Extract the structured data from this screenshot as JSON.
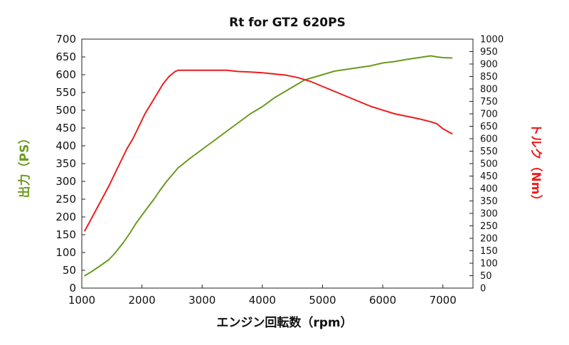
{
  "colors": {
    "power": "#6a9a1f",
    "torque": "#ee1c1c",
    "axis": "#222222",
    "text": "#111111"
  },
  "chart_data": {
    "type": "line",
    "title": "Rt for GT2 620PS",
    "xlabel": "エンジン回転数（rpm）",
    "ylabel_left": "出力（PS）",
    "ylabel_right": "トルク（Nm）",
    "xlim": [
      1000,
      7500
    ],
    "ylim_left": [
      0,
      700
    ],
    "ylim_right": [
      0,
      1000
    ],
    "x_ticks": [
      "1000",
      "2000",
      "3000",
      "4000",
      "5000",
      "6000",
      "7000"
    ],
    "x_tick_values": [
      1000,
      2000,
      3000,
      4000,
      5000,
      6000,
      7000
    ],
    "y_left_ticks": [
      "0",
      "50",
      "100",
      "150",
      "200",
      "250",
      "300",
      "350",
      "400",
      "450",
      "500",
      "550",
      "600",
      "650",
      "700"
    ],
    "y_left_tick_values": [
      0,
      50,
      100,
      150,
      200,
      250,
      300,
      350,
      400,
      450,
      500,
      550,
      600,
      650,
      700
    ],
    "y_right_ticks": [
      "0",
      "50",
      "100",
      "150",
      "200",
      "250",
      "300",
      "350",
      "400",
      "450",
      "500",
      "550",
      "600",
      "650",
      "700",
      "750",
      "800",
      "850",
      "900",
      "950",
      "1000"
    ],
    "y_right_tick_values": [
      0,
      50,
      100,
      150,
      200,
      250,
      300,
      350,
      400,
      450,
      500,
      550,
      600,
      650,
      700,
      750,
      800,
      850,
      900,
      950,
      1000
    ],
    "grid": false,
    "legend": "none",
    "series": [
      {
        "axis": "left",
        "color": "#6a9a1f",
        "x": [
          1050,
          1150,
          1300,
          1450,
          1550,
          1700,
          1800,
          1900,
          2000,
          2100,
          2200,
          2300,
          2400,
          2500,
          2600,
          2800,
          3000,
          3200,
          3400,
          3600,
          3800,
          4000,
          4200,
          4400,
          4600,
          4700,
          4800,
          5000,
          5200,
          5400,
          5600,
          5800,
          6000,
          6200,
          6400,
          6600,
          6800,
          6900,
          7000,
          7150
        ],
        "y": [
          35,
          45,
          62,
          80,
          98,
          130,
          155,
          182,
          205,
          228,
          250,
          275,
          298,
          318,
          338,
          365,
          390,
          415,
          440,
          465,
          490,
          510,
          535,
          555,
          575,
          585,
          590,
          600,
          610,
          615,
          620,
          625,
          633,
          637,
          643,
          648,
          653,
          650,
          648,
          647
        ]
      },
      {
        "axis": "right",
        "color": "#ee1c1c",
        "x": [
          1050,
          1150,
          1250,
          1350,
          1450,
          1550,
          1650,
          1750,
          1850,
          1950,
          2050,
          2150,
          2250,
          2350,
          2450,
          2550,
          2600,
          2800,
          3000,
          3200,
          3400,
          3600,
          3800,
          4000,
          4200,
          4400,
          4600,
          4800,
          5000,
          5200,
          5400,
          5600,
          5800,
          6000,
          6200,
          6400,
          6600,
          6800,
          6900,
          7000,
          7150
        ],
        "y": [
          230,
          275,
          320,
          365,
          410,
          460,
          510,
          560,
          600,
          650,
          700,
          740,
          780,
          820,
          850,
          870,
          875,
          875,
          875,
          875,
          875,
          870,
          868,
          865,
          860,
          855,
          845,
          830,
          810,
          790,
          770,
          750,
          730,
          715,
          700,
          690,
          680,
          668,
          660,
          640,
          620
        ]
      }
    ]
  }
}
